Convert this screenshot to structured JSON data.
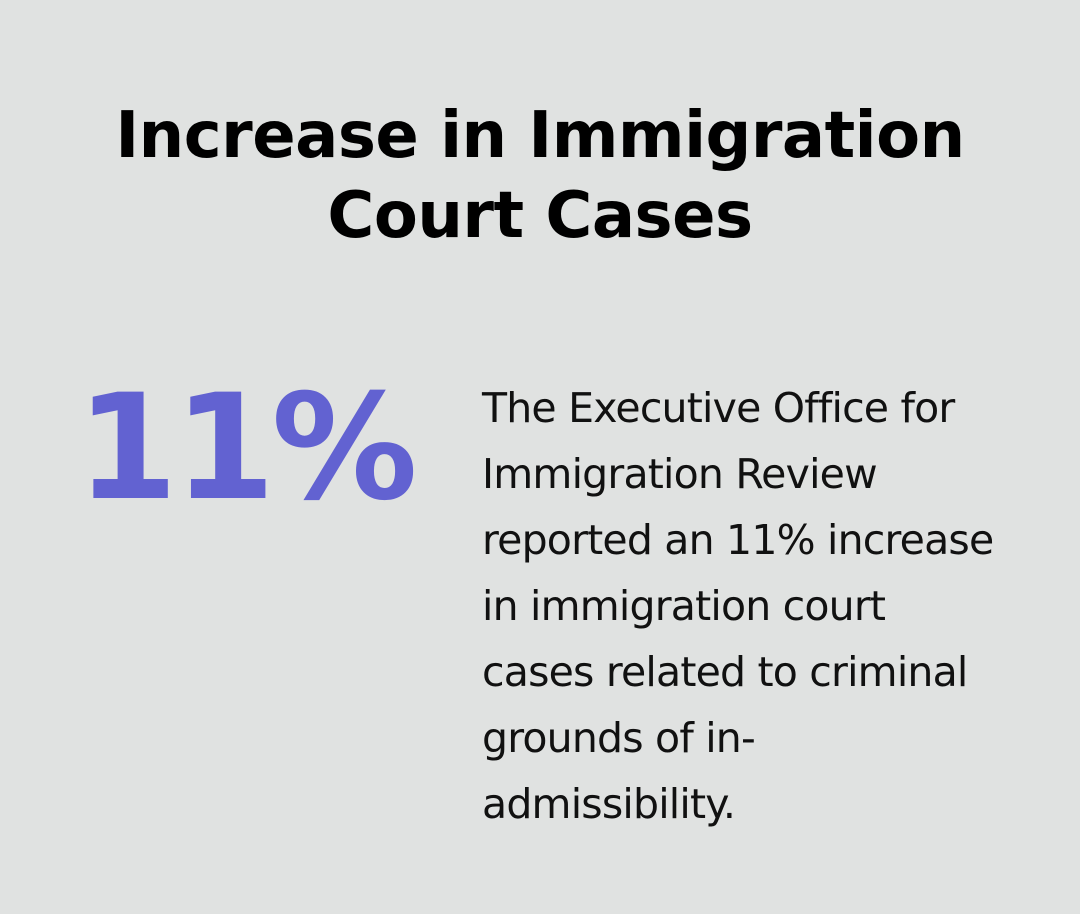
{
  "infographic": {
    "title": "Increase in Immigration Court Cases",
    "statistic": "11%",
    "description": "The Executive Office for Immigration Review reported an 11% increase in immigration court cases related to criminal grounds of in-admissibility."
  },
  "colors": {
    "background": "#e0e2e1",
    "title": "#000000",
    "statistic": "#6262d1",
    "description": "#111111"
  }
}
